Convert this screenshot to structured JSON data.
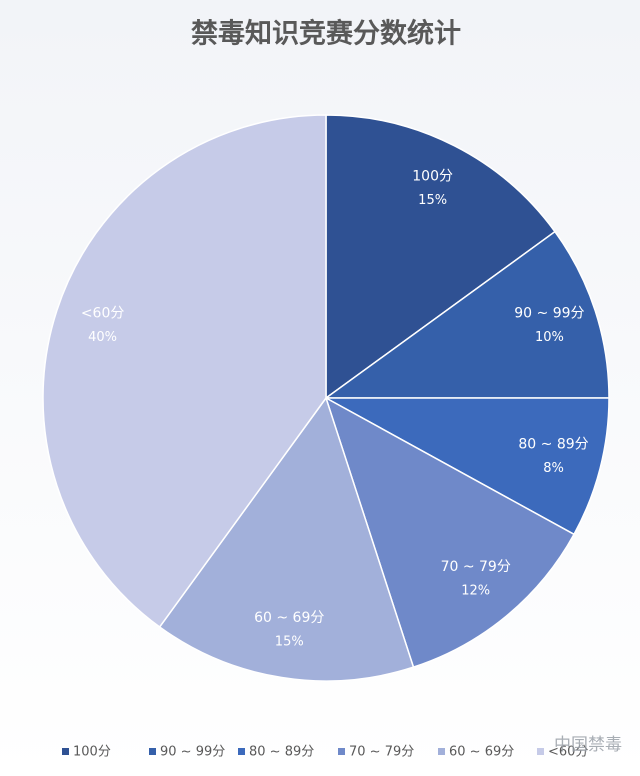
{
  "chart_data": {
    "type": "pie",
    "title": "禁毒知识竞赛分数统计",
    "categories": [
      "100分",
      "90 ~ 99分",
      "80 ~ 89分",
      "70 ~ 79分",
      "60 ~ 69分",
      "<60分"
    ],
    "values": [
      15,
      10,
      8,
      12,
      15,
      40
    ],
    "value_labels": [
      "15%",
      "10%",
      "8%",
      "12%",
      "15%",
      "40%"
    ],
    "colors": [
      "#2f5193",
      "#3560aa",
      "#3c6abc",
      "#6f89c9",
      "#a2b0da",
      "#c6cbe8"
    ],
    "legend": "bottom",
    "watermark": "中国禁毒"
  }
}
